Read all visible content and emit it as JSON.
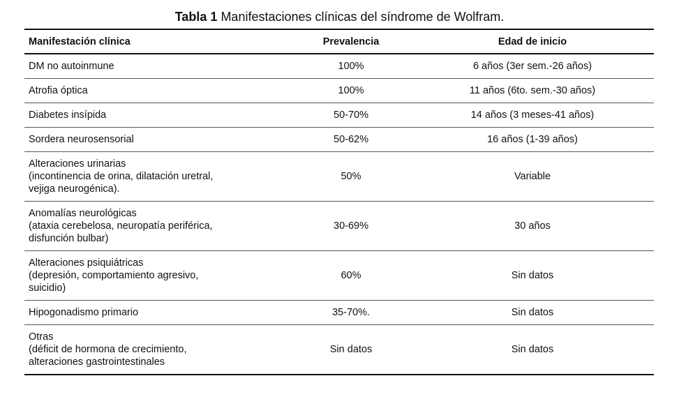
{
  "caption": {
    "label": "Tabla 1",
    "text": "Manifestaciones clínicas del síndrome de Wolfram."
  },
  "table": {
    "headers": [
      "Manifestación clínica",
      "Prevalencia",
      "Edad de inicio"
    ],
    "rows": [
      [
        "DM no autoinmune",
        "100%",
        "6 años (3er sem.-26 años)"
      ],
      [
        "Atrofia óptica",
        "100%",
        "11 años (6to. sem.-30 años)"
      ],
      [
        "Diabetes insípida",
        "50-70%",
        "14 años (3 meses-41 años)"
      ],
      [
        "Sordera neurosensorial",
        "50-62%",
        "16 años (1-39 años)"
      ],
      [
        "Alteraciones urinarias\n(incontinencia de orina, dilatación uretral,\nvejiga neurogénica).",
        "50%",
        "Variable"
      ],
      [
        "Anomalías neurológicas\n(ataxia cerebelosa, neuropatía periférica,\ndisfunción bulbar)",
        "30-69%",
        "30 años"
      ],
      [
        "Alteraciones psiquiátricas\n(depresión, comportamiento agresivo,\nsuicidio)",
        "60%",
        "Sin datos"
      ],
      [
        "Hipogonadismo primario",
        "35-70%.",
        "Sin datos"
      ],
      [
        "Otras\n(déficit de hormona de crecimiento,\nalteraciones gastrointestinales",
        "Sin datos",
        "Sin datos"
      ]
    ]
  }
}
